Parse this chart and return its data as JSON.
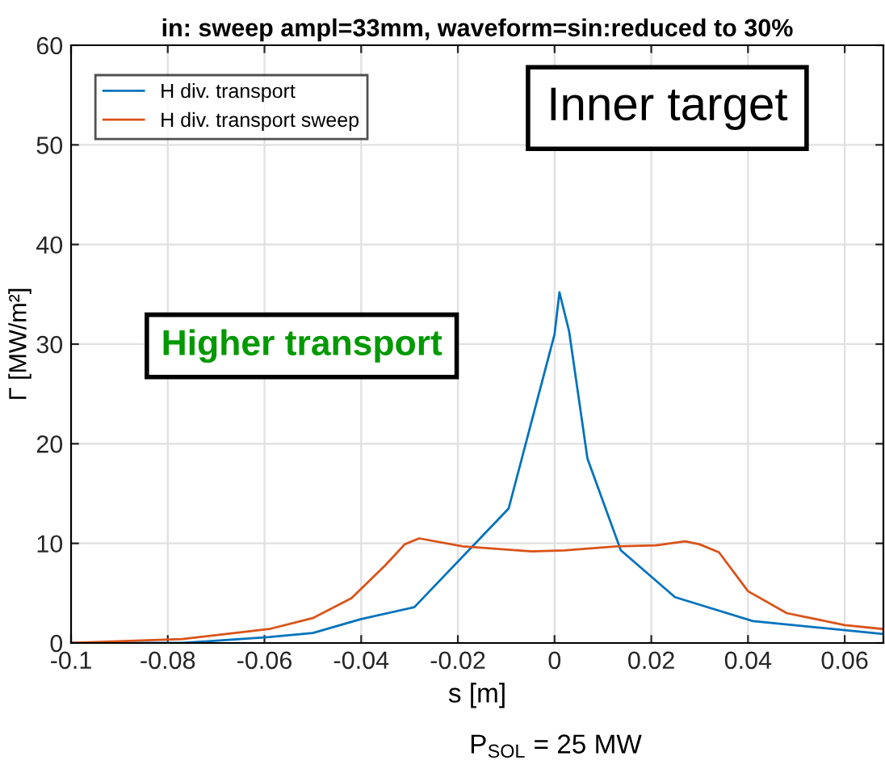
{
  "chart_data": {
    "type": "line",
    "title": "in: sweep ampl=33mm, waveform=sin:reduced to 30%",
    "xlabel": "s [m]",
    "ylabel": "Γ [MW/m²]",
    "annotations": [
      "Inner target",
      "Higher transport",
      "P$_{SOL}$ = 25 MW"
    ],
    "xlim": [
      -0.1,
      0.068
    ],
    "xticks": [
      -0.1,
      -0.08,
      -0.06,
      -0.04,
      -0.02,
      0,
      0.02,
      0.04,
      0.06
    ],
    "ylim": [
      0,
      60
    ],
    "yticks": [
      0,
      10,
      20,
      30,
      40,
      50,
      60
    ],
    "grid": true,
    "legend": "top left",
    "marker": "none",
    "line_style": "solid",
    "series": [
      {
        "name": "H div. transport",
        "color": "#0072bd",
        "x": [
          -0.1,
          -0.077,
          -0.059,
          -0.05,
          -0.04,
          -0.029,
          -0.0095,
          0,
          0.001,
          0.003,
          0.0068,
          0.0137,
          0.0249,
          0.041,
          0.068
        ],
        "values": [
          0,
          0,
          0.6,
          1.0,
          2.4,
          3.6,
          13.5,
          31,
          35.2,
          31.3,
          18.5,
          9.3,
          4.6,
          2.2,
          0.9
        ]
      },
      {
        "name": "H div. transport sweep",
        "color": "#d95319",
        "x": [
          -0.1,
          -0.077,
          -0.059,
          -0.05,
          -0.042,
          -0.035,
          -0.031,
          -0.028,
          -0.019,
          -0.0047,
          0.002,
          0.013,
          0.021,
          0.027,
          0.03,
          0.034,
          0.04,
          0.048,
          0.06,
          0.068
        ],
        "values": [
          0,
          0.4,
          1.4,
          2.5,
          4.5,
          7.8,
          9.9,
          10.5,
          9.7,
          9.2,
          9.3,
          9.7,
          9.8,
          10.2,
          9.9,
          9.1,
          5.2,
          3.0,
          1.8,
          1.4
        ]
      }
    ]
  }
}
